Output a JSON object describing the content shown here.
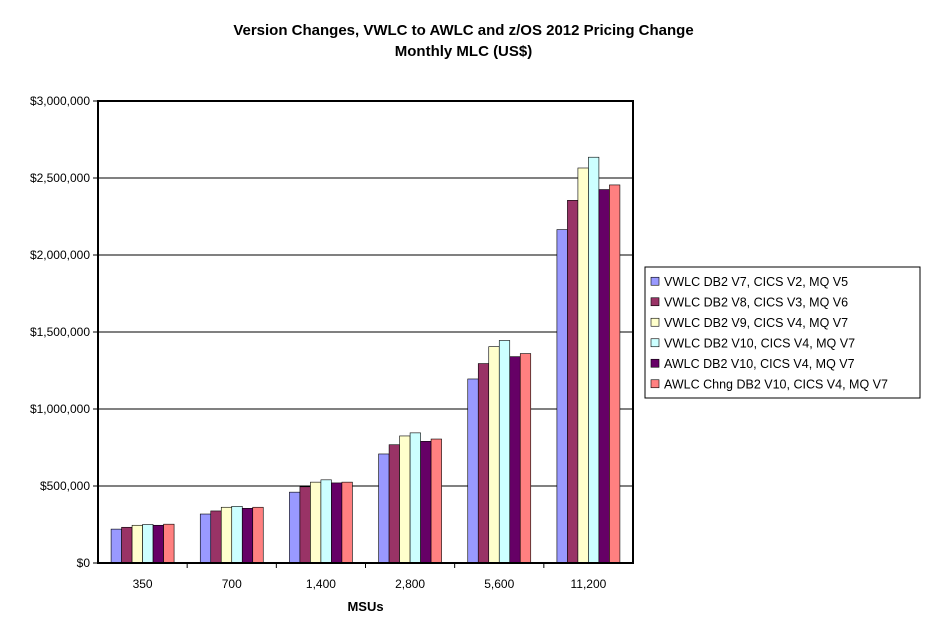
{
  "chart_data": {
    "type": "bar",
    "title": "Version Changes, VWLC to AWLC and z/OS 2012 Pricing Change",
    "subtitle": "Monthly MLC (US$)",
    "xlabel": "MSUs",
    "ylabel": "",
    "ylim": [
      0,
      3000000
    ],
    "y_ticks": [
      0,
      500000,
      1000000,
      1500000,
      2000000,
      2500000,
      3000000
    ],
    "y_tick_labels": [
      "$0",
      "$500,000",
      "$1,000,000",
      "$1,500,000",
      "$2,000,000",
      "$2,500,000",
      "$3,000,000"
    ],
    "categories": [
      "350",
      "700",
      "1,400",
      "2,800",
      "5,600",
      "11,200"
    ],
    "grid": true,
    "legend_position": "right",
    "series": [
      {
        "name": "VWLC DB2 V7, CICS V2, MQ V5",
        "color": "#9999FF",
        "values": [
          220000,
          318000,
          460000,
          708000,
          1195000,
          2165000
        ]
      },
      {
        "name": "VWLC DB2 V8, CICS V3, MQ V6",
        "color": "#993366",
        "values": [
          232000,
          338000,
          495000,
          768000,
          1295000,
          2355000
        ]
      },
      {
        "name": "VWLC DB2 V9, CICS V4, MQ V7",
        "color": "#FFFFCC",
        "values": [
          245000,
          362000,
          525000,
          825000,
          1405000,
          2565000
        ]
      },
      {
        "name": "VWLC DB2 V10, CICS V4, MQ V7",
        "color": "#CCFFFF",
        "values": [
          250000,
          368000,
          540000,
          845000,
          1445000,
          2635000
        ]
      },
      {
        "name": "AWLC DB2 V10, CICS V4, MQ V7",
        "color": "#660066",
        "values": [
          245000,
          355000,
          520000,
          790000,
          1340000,
          2425000
        ]
      },
      {
        "name": "AWLC Chng DB2 V10, CICS V4, MQ V7",
        "color": "#FF8080",
        "values": [
          252000,
          362000,
          525000,
          805000,
          1360000,
          2455000
        ]
      }
    ]
  }
}
